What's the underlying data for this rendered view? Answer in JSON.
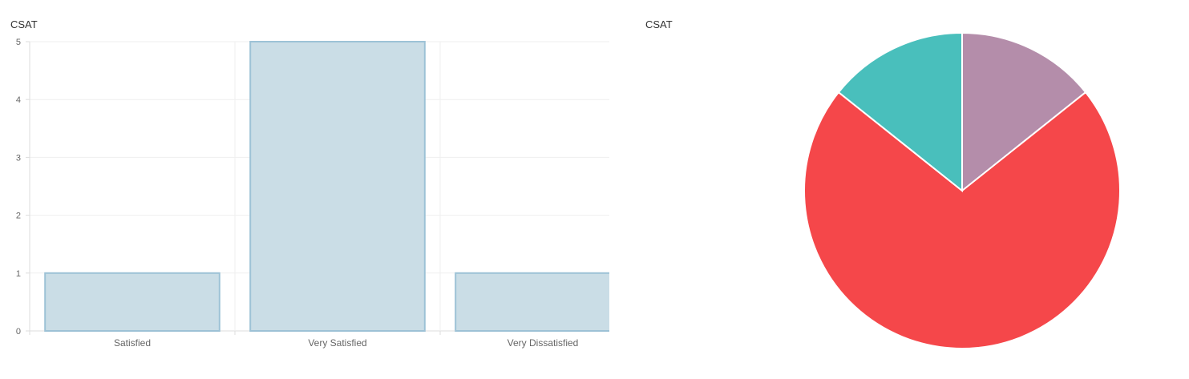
{
  "chart_data": [
    {
      "type": "bar",
      "title": "CSAT",
      "categories": [
        "Satisfied",
        "Very Satisfied",
        "Very Dissatisfied"
      ],
      "values": [
        1,
        5,
        1
      ],
      "ylim": [
        0,
        5
      ],
      "yticks": [
        0,
        1,
        2,
        3,
        4,
        5
      ],
      "grid": true,
      "colors": {
        "fill": "#cadde6",
        "stroke": "#9dc2d6",
        "grid": "#efefef",
        "axis": "#dddddd",
        "tick_text": "#666666"
      }
    },
    {
      "type": "pie",
      "title": "CSAT",
      "categories": [
        "Satisfied",
        "Very Satisfied",
        "Very Dissatisfied"
      ],
      "values": [
        1,
        5,
        1
      ],
      "colors": [
        "#b48daa",
        "#f5474a",
        "#49bfbc"
      ],
      "slice_border": "#ffffff"
    }
  ]
}
